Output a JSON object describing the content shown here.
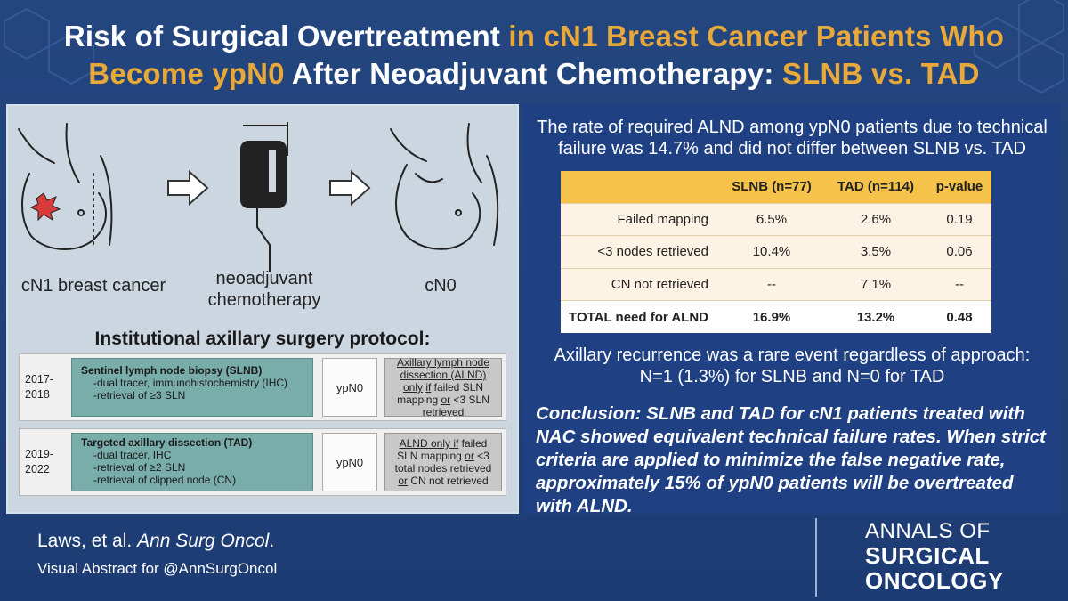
{
  "title": {
    "part1": "Risk of Surgical Overtreatment",
    "part2": " in cN1 Breast Cancer Patients Who",
    "part3": "Become ypN0",
    "part4": " After Neoadjuvant Chemotherapy: ",
    "part5": "SLNB vs. TAD"
  },
  "colors": {
    "background": "#1f3f7a",
    "accent": "#e8a93a",
    "table_header": "#f5c24a",
    "protocol_box": "#78adaa"
  },
  "figures": {
    "label_cn1": "cN1 breast cancer",
    "label_nac_1": "neoadjuvant",
    "label_nac_2": "chemotherapy",
    "label_cn0": "cN0"
  },
  "protocol": {
    "heading": "Institutional axillary surgery protocol:",
    "rows": [
      {
        "year1": "2017-",
        "year2": "2018",
        "title": "Sentinel lymph node biopsy (SLNB)",
        "lines": [
          "-dual tracer, immunohistochemistry (IHC)",
          "-retrieval of ≥3 SLN"
        ],
        "status": "ypN0",
        "outcome": {
          "a": "Axillary lymph node dissection (ALND) only",
          "b": "if",
          "c": " failed SLN mapping",
          "d": "or",
          "e": " <3 SLN retrieved"
        }
      },
      {
        "year1": "2019-",
        "year2": "2022",
        "title": "Targeted axillary dissection (TAD)",
        "lines": [
          "-dual tracer, IHC",
          "-retrieval of ≥2 SLN",
          "-retrieval of clipped node (CN)"
        ],
        "status": "ypN0",
        "outcome": {
          "a": "ALND only if",
          "b": " failed SLN mapping ",
          "c": "or",
          "d": " <3 total nodes retrieved ",
          "e": "or",
          "f": " CN not retrieved"
        }
      }
    ]
  },
  "result_statement": {
    "line1": "The rate of required ALND among ypN0 patients due to technical",
    "line2": "failure was 14.7% and did not differ between SLNB vs. TAD"
  },
  "table": {
    "headers": [
      "",
      "SLNB (n=77)",
      "TAD (n=114)",
      "p-value"
    ],
    "rows": [
      [
        "Failed mapping",
        "6.5%",
        "2.6%",
        "0.19"
      ],
      [
        "<3 nodes retrieved",
        "10.4%",
        "3.5%",
        "0.06"
      ],
      [
        "CN not retrieved",
        "--",
        "7.1%",
        "--"
      ]
    ],
    "total": [
      "TOTAL need for ALND",
      "16.9%",
      "13.2%",
      "0.48"
    ]
  },
  "recurrence": {
    "line1": "Axillary recurrence was a rare event regardless of approach:",
    "line2": "N=1 (1.3%) for SLNB and N=0 for TAD"
  },
  "conclusion": "Conclusion: SLNB and TAD for cN1 patients treated with NAC showed equivalent technical failure rates. When strict criteria are applied to minimize the false negative rate, approximately 15% of ypN0 patients will be overtreated with ALND.",
  "footer": {
    "authors": "Laws, et al. ",
    "journal_abbrev": "Ann Surg Oncol",
    "period": ".",
    "subtitle": "Visual Abstract for @AnnSurgOncol"
  },
  "journal_logo": {
    "line1": "ANNALS OF",
    "line2": "SURGICAL",
    "line3": "ONCOLOGY"
  }
}
